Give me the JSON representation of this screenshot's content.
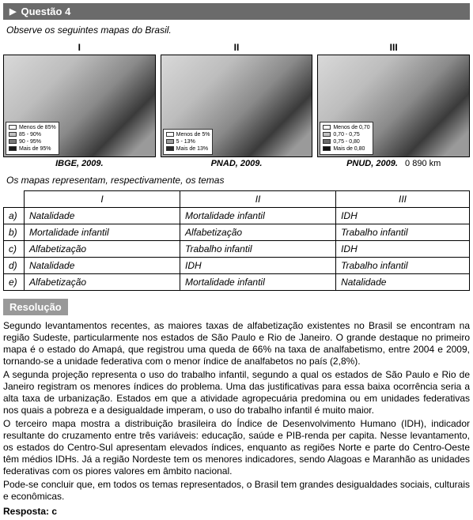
{
  "question": {
    "header": "Questão 4",
    "intro": "Observe os seguintes mapas do Brasil."
  },
  "maps": {
    "columns": [
      {
        "roman": "I",
        "source": "IBGE, 2009.",
        "legend": [
          {
            "label": "Menos de 85%",
            "color": "#ffffff"
          },
          {
            "label": "85 - 90%",
            "color": "#c2c2c2"
          },
          {
            "label": "90 - 95%",
            "color": "#7a7a7a"
          },
          {
            "label": "Mais de 95%",
            "color": "#1a1a1a"
          }
        ]
      },
      {
        "roman": "II",
        "source": "PNAD, 2009.",
        "legend": [
          {
            "label": "Menos de 5%",
            "color": "#ffffff"
          },
          {
            "label": "5 - 13%",
            "color": "#9c9c9c"
          },
          {
            "label": "Mais de 13%",
            "color": "#2a2a2a"
          }
        ]
      },
      {
        "roman": "III",
        "source": "PNUD, 2009.",
        "legend": [
          {
            "label": "Menos de 0,70",
            "color": "#ffffff"
          },
          {
            "label": "0,70 - 0,75",
            "color": "#c2c2c2"
          },
          {
            "label": "0,75 - 0,80",
            "color": "#6a6a6a"
          },
          {
            "label": "Mais de 0,80",
            "color": "#111111"
          }
        ]
      }
    ],
    "scale": "0        890 km"
  },
  "table": {
    "lead": "Os mapas representam, respectivamente, os temas",
    "headers": [
      "",
      "I",
      "II",
      "III"
    ],
    "rows": [
      [
        "a)",
        "Natalidade",
        "Mortalidade infantil",
        "IDH"
      ],
      [
        "b)",
        "Mortalidade infantil",
        "Alfabetização",
        "Trabalho infantil"
      ],
      [
        "c)",
        "Alfabetização",
        "Trabalho infantil",
        "IDH"
      ],
      [
        "d)",
        "Natalidade",
        "IDH",
        "Trabalho infantil"
      ],
      [
        "e)",
        "Alfabetização",
        "Mortalidade infantil",
        "Natalidade"
      ]
    ]
  },
  "resolution": {
    "header": "Resolução",
    "paragraphs": [
      "Segundo levantamentos recentes, as maiores taxas de alfabetização existentes no Brasil se encontram na região Sudeste, particularmente nos estados de São Paulo e Rio de Janeiro. O grande destaque no primeiro mapa é o estado do Amapá, que registrou uma queda de 66% na taxa de analfabetismo, entre 2004 e 2009, tornando-se a unidade federativa com o menor índice de analfabetos no país (2,8%).",
      "A segunda projeção representa o uso do trabalho infantil, segundo a qual os estados de São Paulo e Rio de Janeiro registram os menores índices do problema. Uma das justificativas para essa baixa ocorrência seria a alta taxa de urbanização. Estados em que a atividade agropecuária predomina ou em unidades federativas nos quais a pobreza e a desigualdade imperam, o uso do trabalho infantil é muito maior.",
      "O terceiro mapa mostra a distribuição brasileira do Índice de Desenvolvimento Humano (IDH), indicador resultante do cruzamento entre três variáveis: educação, saúde e PIB-renda per capita. Nesse levantamento, os estados do Centro-Sul apresentam elevados índices, enquanto as regiões Norte e parte do Centro-Oeste têm médios IDHs. Já a região Nordeste tem os menores indicadores, sendo Alagoas e Maranhão as unidades federativas com os piores valores em âmbito nacional.",
      "Pode-se concluir que, em todos os temas representados, o Brasil tem grandes desigualdades sociais, culturais e econômicas."
    ],
    "answer": "Resposta: c"
  }
}
